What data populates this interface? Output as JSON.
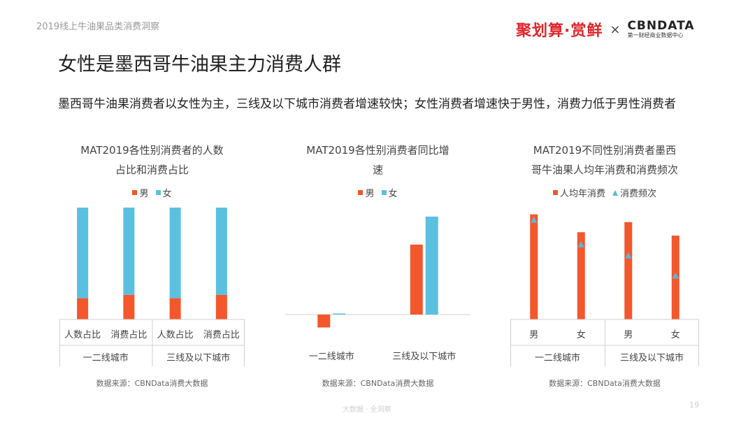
{
  "header": {
    "report_tag": "2019线上牛油果品类消费洞察",
    "brand_left": "聚划算·赏鲜",
    "brand_sep": "×",
    "brand_right": "CBNDATA",
    "brand_right_sub": "第一财经商业数据中心"
  },
  "page_title": "女性是墨西哥牛油果主力消费人群",
  "subtitle": "墨西哥牛油果消费者以女性为主，三线及以下城市消费者增速较快；女性消费者增速快于男性，消费力低于男性消费者",
  "colors": {
    "male": "#f4572c",
    "female": "#5ac0e0",
    "triangle": "#5ab8dc",
    "axis": "#d0d0d0"
  },
  "chart_data": [
    {
      "type": "bar",
      "stacked": true,
      "title_line1": "MAT2019各性别消费者的人数",
      "title_line2": "占比和消费占比",
      "legend": [
        "男",
        "女"
      ],
      "categories": [
        "人数占比",
        "消费占比",
        "人数占比",
        "消费占比"
      ],
      "groups": [
        "一二线城市",
        "三线及以下城市"
      ],
      "series": [
        {
          "name": "男",
          "values": [
            19,
            22,
            19,
            22
          ]
        },
        {
          "name": "女",
          "values": [
            81,
            78,
            81,
            78
          ]
        }
      ],
      "ylim": [
        0,
        100
      ],
      "source": "数据来源：CBNData消费大数据"
    },
    {
      "type": "bar",
      "title_line1": "MAT2019各性别消费者同比增",
      "title_line2": "速",
      "legend": [
        "男",
        "女"
      ],
      "categories": [
        "一二线城市",
        "三线及以下城市"
      ],
      "series": [
        {
          "name": "男",
          "values": [
            -12,
            65
          ]
        },
        {
          "name": "女",
          "values": [
            1,
            91
          ]
        }
      ],
      "ylim": [
        -15,
        100
      ],
      "source": "数据来源：CBNData消费大数据"
    },
    {
      "type": "bar",
      "title_line1": "MAT2019不同性别消费者墨西",
      "title_line2": "哥牛油果人均年消费和消费频次",
      "legend": [
        "人均年消费",
        "消费频次"
      ],
      "categories": [
        "男",
        "女",
        "男",
        "女"
      ],
      "groups": [
        "一二线城市",
        "三线及以下城市"
      ],
      "series": [
        {
          "name": "人均年消费",
          "values": [
            94,
            78,
            87,
            75
          ]
        },
        {
          "name": "消费频次",
          "values": [
            89,
            67,
            57,
            39
          ]
        }
      ],
      "ylim": [
        0,
        100
      ],
      "source": "数据来源：CBNData消费大数据"
    }
  ],
  "footer": {
    "center": "大数据 · 全洞察",
    "page": "19"
  }
}
